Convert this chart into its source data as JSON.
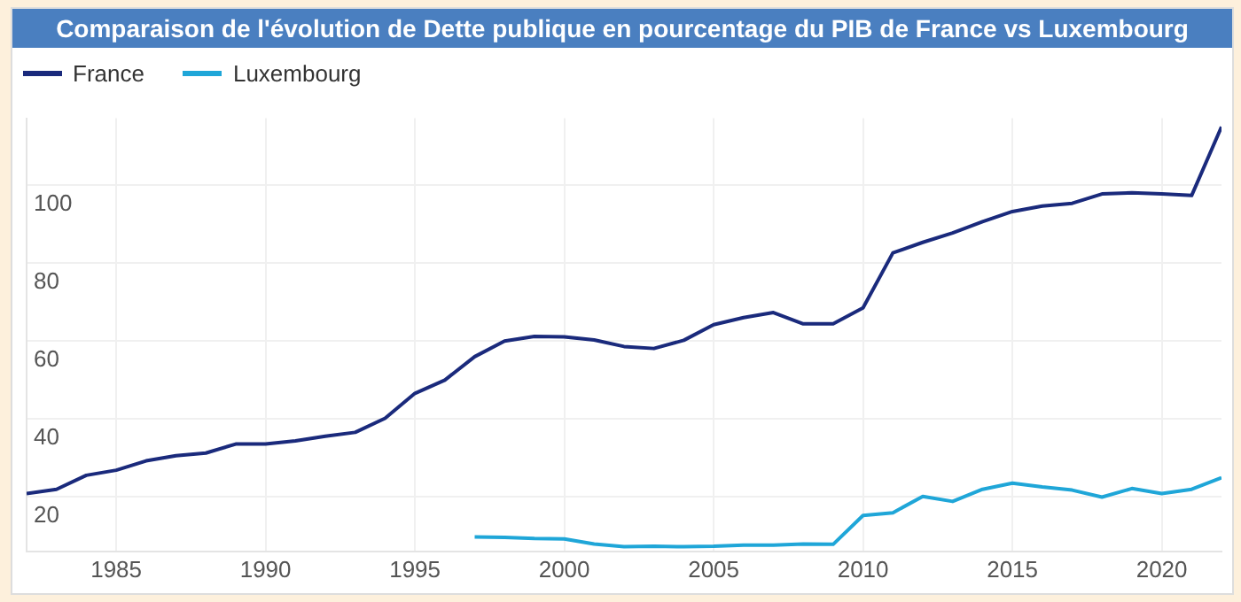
{
  "chart_data": {
    "type": "line",
    "title": "Comparaison de l'évolution de Dette publique en pourcentage du PIB de France vs Luxembourg",
    "x": [
      1982,
      1983,
      1984,
      1985,
      1986,
      1987,
      1988,
      1989,
      1990,
      1991,
      1992,
      1993,
      1994,
      1995,
      1996,
      1997,
      1998,
      1999,
      2000,
      2001,
      2002,
      2003,
      2004,
      2005,
      2006,
      2007,
      2008,
      2009,
      2010,
      2011,
      2012,
      2013,
      2014,
      2015,
      2016,
      2017,
      2018,
      2019,
      2020,
      2021,
      2022
    ],
    "series": [
      {
        "name": "France",
        "color": "#1a2a7c",
        "values": [
          20.8,
          21.9,
          25.5,
          26.8,
          29.2,
          30.5,
          31.2,
          33.5,
          33.5,
          34.3,
          35.5,
          36.5,
          40.1,
          46.5,
          49.9,
          55.9,
          59.9,
          61.1,
          61,
          60.2,
          58.5,
          58,
          60.1,
          64.1,
          65.9,
          67.2,
          64.3,
          64.3,
          68.4,
          82.5,
          85.2,
          87.6,
          90.5,
          93.1,
          94.5,
          95.2,
          97.6,
          97.9,
          97.6,
          97.2,
          114.8
        ]
      },
      {
        "name": "Luxembourg",
        "color": "#1fa6d8",
        "values": [
          null,
          null,
          null,
          null,
          null,
          null,
          null,
          null,
          null,
          null,
          null,
          null,
          null,
          null,
          null,
          9.7,
          9.6,
          9.3,
          9.2,
          7.9,
          7.2,
          7.3,
          7.2,
          7.3,
          7.6,
          7.6,
          7.9,
          7.8,
          15.2,
          15.9,
          20.1,
          18.8,
          21.9,
          23.5,
          22.5,
          21.7,
          19.9,
          22.1,
          20.8,
          21.9,
          24.9
        ]
      }
    ],
    "xlim": [
      1982,
      2022
    ],
    "xticks": [
      1985,
      1990,
      1995,
      2000,
      2005,
      2010,
      2015,
      2020
    ],
    "ylim": [
      6,
      117
    ],
    "yticks": [
      20,
      40,
      60,
      80,
      100
    ],
    "grid": true,
    "legend": "top left",
    "marker": "none",
    "line_style": "solid"
  }
}
